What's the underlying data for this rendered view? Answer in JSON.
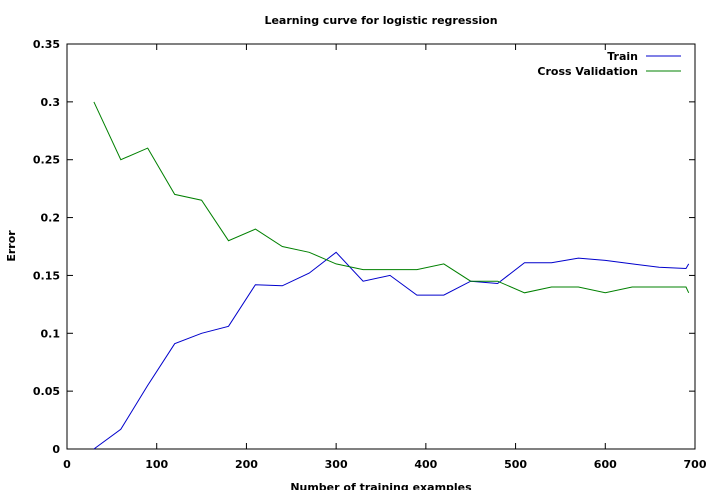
{
  "chart_data": {
    "type": "line",
    "title": "Learning curve for logistic regression",
    "xlabel": "Number of training examples",
    "ylabel": "Error",
    "xlim": [
      0,
      700
    ],
    "ylim": [
      0,
      0.35
    ],
    "xticks": [
      0,
      100,
      200,
      300,
      400,
      500,
      600,
      700
    ],
    "yticks": [
      0,
      0.05,
      0.1,
      0.15,
      0.2,
      0.25,
      0.3,
      0.35
    ],
    "xtick_labels": [
      "0",
      "100",
      "200",
      "300",
      "400",
      "500",
      "600",
      "700"
    ],
    "ytick_labels": [
      "0",
      "0.05",
      "0.1",
      "0.15",
      "0.2",
      "0.25",
      "0.3",
      "0.35"
    ],
    "grid": false,
    "legend_position": "top-right",
    "series": [
      {
        "name": "Train",
        "color": "#0000cc",
        "x": [
          30,
          60,
          90,
          120,
          150,
          180,
          210,
          240,
          270,
          300,
          330,
          360,
          390,
          420,
          450,
          480,
          510,
          540,
          570,
          600,
          630,
          660,
          690,
          693
        ],
        "y": [
          0.0,
          0.017,
          0.055,
          0.091,
          0.1,
          0.106,
          0.142,
          0.141,
          0.152,
          0.17,
          0.145,
          0.15,
          0.133,
          0.133,
          0.145,
          0.143,
          0.161,
          0.161,
          0.165,
          0.163,
          0.16,
          0.157,
          0.156,
          0.16
        ]
      },
      {
        "name": "Cross Validation",
        "color": "#008000",
        "x": [
          30,
          60,
          90,
          120,
          150,
          180,
          210,
          240,
          270,
          300,
          330,
          360,
          390,
          420,
          450,
          480,
          510,
          540,
          570,
          600,
          630,
          660,
          690,
          693
        ],
        "y": [
          0.3,
          0.25,
          0.26,
          0.22,
          0.215,
          0.18,
          0.19,
          0.175,
          0.17,
          0.16,
          0.155,
          0.155,
          0.155,
          0.16,
          0.145,
          0.145,
          0.135,
          0.14,
          0.14,
          0.135,
          0.14,
          0.14,
          0.14,
          0.135
        ]
      }
    ]
  }
}
